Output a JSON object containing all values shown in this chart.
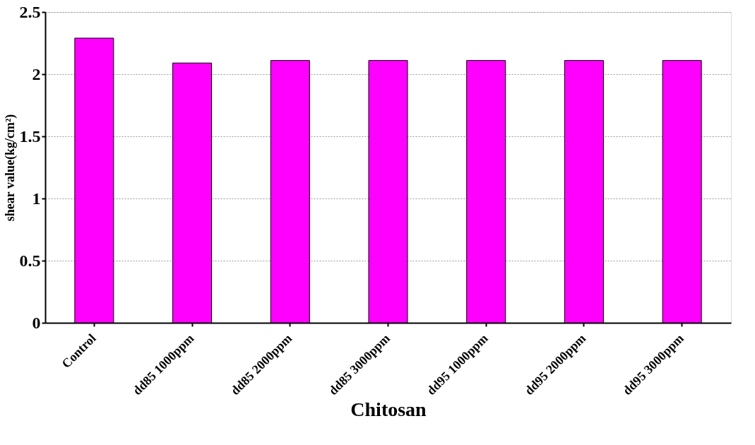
{
  "chart_data": {
    "type": "bar",
    "xlabel": "Chitosan",
    "ylabel": "shear value(kg/cm²)",
    "categories": [
      "Control",
      "dd85 1000ppm",
      "dd85 2000ppm",
      "dd85 3000ppm",
      "dd95 1000ppm",
      "dd95 2000ppm",
      "dd95 3000ppm"
    ],
    "values": [
      2.29,
      2.09,
      2.11,
      2.11,
      2.11,
      2.11,
      2.11
    ],
    "color": "#ff00ff",
    "ylim": [
      0,
      2.5
    ],
    "yticks": [
      0,
      0.5,
      1,
      1.5,
      2,
      2.5
    ],
    "grid": "y"
  }
}
